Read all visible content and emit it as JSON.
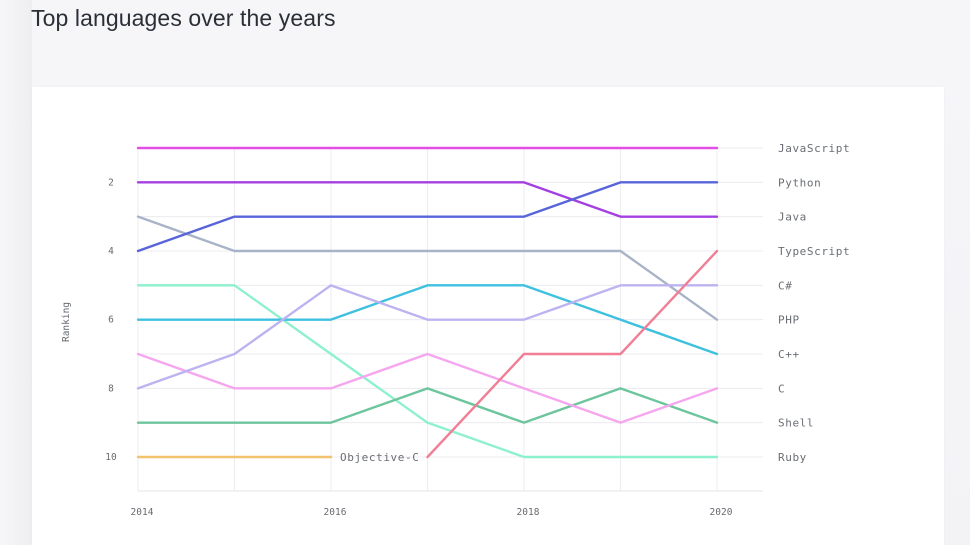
{
  "page": {
    "title": "Top languages over the years"
  },
  "chart_data": {
    "type": "line",
    "subtype": "bump",
    "title": "Top languages over the years",
    "xlabel": "",
    "ylabel": "Ranking",
    "x": [
      2014,
      2015,
      2016,
      2017,
      2018,
      2019,
      2020
    ],
    "x_tick_labels": [
      "2014",
      "2016",
      "2018",
      "2020"
    ],
    "y_tick_labels": [
      "2",
      "4",
      "6",
      "8",
      "10"
    ],
    "ylim": [
      11,
      0
    ],
    "y_inverted": true,
    "grid": true,
    "legend_position": "right (end-of-line labels)",
    "series": [
      {
        "name": "JavaScript",
        "color": "#e14fe6",
        "values": [
          1,
          1,
          1,
          1,
          1,
          1,
          1
        ]
      },
      {
        "name": "Python",
        "color": "#5864d9",
        "values": [
          4,
          3,
          3,
          3,
          3,
          2,
          2
        ]
      },
      {
        "name": "Java",
        "color": "#a43fe0",
        "values": [
          2,
          2,
          2,
          2,
          2,
          3,
          3
        ]
      },
      {
        "name": "TypeScript",
        "color": "#f07f95",
        "values": [
          null,
          null,
          null,
          10,
          7,
          7,
          4
        ]
      },
      {
        "name": "C#",
        "color": "#bdb3f0",
        "values": [
          8,
          7,
          5,
          6,
          6,
          5,
          5
        ]
      },
      {
        "name": "PHP",
        "color": "#a8b3c8",
        "values": [
          3,
          4,
          4,
          4,
          4,
          4,
          6
        ]
      },
      {
        "name": "C++",
        "color": "#3ec0df",
        "values": [
          6,
          6,
          6,
          5,
          5,
          6,
          7
        ]
      },
      {
        "name": "C",
        "color": "#f6a6ef",
        "values": [
          7,
          8,
          8,
          7,
          8,
          9,
          8
        ]
      },
      {
        "name": "Shell",
        "color": "#6cc59c",
        "values": [
          9,
          9,
          9,
          8,
          9,
          8,
          9
        ]
      },
      {
        "name": "Ruby",
        "color": "#8ef1cd",
        "values": [
          5,
          5,
          7,
          9,
          10,
          10,
          10
        ]
      },
      {
        "name": "Objective-C",
        "color": "#f2c26e",
        "values": [
          10,
          10,
          10,
          null,
          null,
          null,
          null
        ]
      }
    ],
    "end_labels": [
      "JavaScript",
      "Python",
      "Java",
      "TypeScript",
      "C#",
      "PHP",
      "C++",
      "C",
      "Shell",
      "Ruby"
    ],
    "annotations": [
      {
        "text": "Objective-C",
        "x": 2016,
        "y": 10,
        "note": "inline label at end of Objective-C line"
      }
    ]
  }
}
